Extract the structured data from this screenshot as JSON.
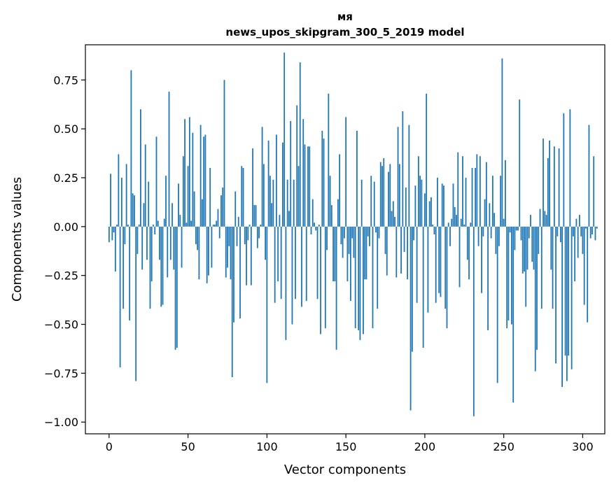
{
  "chart_data": {
    "type": "bar",
    "title_line1": "мя",
    "title_line2": "news_upos_skipgram_300_5_2019 model",
    "xlabel": "Vector components",
    "ylabel": "Components values",
    "xlim": [
      -15,
      314
    ],
    "ylim": [
      -1.06,
      0.93
    ],
    "xticks": [
      0,
      50,
      100,
      150,
      200,
      250,
      300
    ],
    "xtick_labels": [
      "0",
      "50",
      "100",
      "150",
      "200",
      "250",
      "300"
    ],
    "yticks": [
      0.75,
      0.5,
      0.25,
      0.0,
      -0.25,
      -0.5,
      -0.75,
      -1.0
    ],
    "ytick_labels": [
      "0.75",
      "0.50",
      "0.25",
      "0.00",
      "−0.25",
      "−0.50",
      "−0.75",
      "−1.00"
    ],
    "bar_color": "#1f77b4",
    "x_start": 0,
    "values": [
      -0.08,
      0.27,
      -0.07,
      -0.03,
      -0.23,
      0.01,
      0.37,
      -0.72,
      0.25,
      -0.42,
      -0.09,
      0.32,
      0.01,
      -0.48,
      0.8,
      0.17,
      0.16,
      -0.79,
      -0.14,
      0.01,
      0.6,
      -0.22,
      0.12,
      0.42,
      -0.17,
      0.23,
      -0.42,
      -0.28,
      0.01,
      -0.04,
      0.46,
      0.03,
      -0.17,
      -0.41,
      -0.4,
      0.04,
      0.26,
      -0.26,
      0.69,
      -0.17,
      0.12,
      -0.22,
      -0.63,
      -0.62,
      0.22,
      0.06,
      -0.21,
      0.36,
      0.55,
      0.02,
      0.31,
      0.56,
      0.03,
      0.48,
      0.18,
      -0.09,
      -0.12,
      -0.27,
      0.52,
      0.14,
      0.46,
      0.47,
      -0.29,
      -0.25,
      0.3,
      -0.21,
      0.01,
      0.01,
      0.03,
      0.09,
      -0.06,
      0.16,
      0.2,
      0.75,
      -0.26,
      -0.21,
      -0.1,
      -0.27,
      -0.77,
      -0.49,
      0.18,
      -0.1,
      0.05,
      -0.47,
      0.31,
      0.3,
      -0.09,
      -0.3,
      -0.07,
      0.01,
      -0.3,
      0.4,
      0.11,
      0.11,
      -0.11,
      -0.06,
      0.01,
      0.51,
      0.32,
      -0.17,
      -0.8,
      0.44,
      0.26,
      0.12,
      0.24,
      -0.39,
      0.47,
      -0.28,
      0.06,
      -0.37,
      0.43,
      0.89,
      -0.58,
      0.24,
      0.08,
      0.54,
      -0.5,
      0.24,
      -0.37,
      0.62,
      0.31,
      0.84,
      -0.41,
      0.55,
      0.42,
      -0.38,
      0.41,
      0.41,
      -0.04,
      0.14,
      0.02,
      -0.02,
      -0.37,
      0.01,
      -0.55,
      0.49,
      0.45,
      -0.52,
      -0.12,
      0.68,
      0.26,
      0.11,
      -0.28,
      -0.28,
      -0.63,
      0.14,
      0.37,
      -0.09,
      -0.16,
      -0.06,
      0.56,
      -0.28,
      -0.14,
      -0.38,
      -0.06,
      -0.16,
      -0.52,
      0.49,
      -0.53,
      -0.58,
      0.24,
      -0.55,
      -0.27,
      -0.27,
      -0.05,
      -0.1,
      0.26,
      -0.52,
      0.23,
      -0.03,
      -0.42,
      -0.06,
      0.33,
      0.31,
      0.35,
      -0.14,
      -0.25,
      0.28,
      0.32,
      0.08,
      0.13,
      0.05,
      -0.26,
      0.51,
      0.32,
      -0.24,
      0.59,
      -0.13,
      0.2,
      -0.27,
      0.52,
      -0.94,
      -0.64,
      -0.07,
      0.21,
      -0.39,
      0.36,
      0.26,
      0.24,
      -0.62,
      0.17,
      0.68,
      -0.44,
      0.13,
      0.15,
      0.01,
      -0.04,
      -0.39,
      0.25,
      -0.34,
      -0.36,
      0.22,
      0.21,
      -0.42,
      -0.52,
      0.02,
      -0.1,
      0.04,
      0.22,
      0.1,
      0.06,
      0.38,
      -0.31,
      0.04,
      0.36,
      0.01,
      0.25,
      -0.17,
      -0.27,
      0.02,
      0.3,
      -0.97,
      0.3,
      0.37,
      -0.1,
      0.36,
      -0.34,
      -0.05,
      0.14,
      0.33,
      -0.53,
      0.12,
      -0.06,
      0.26,
      0.07,
      -0.14,
      -0.8,
      -0.1,
      0.26,
      0.86,
      0.04,
      0.34,
      -0.52,
      -0.48,
      -0.03,
      -0.5,
      -0.9,
      -0.12,
      -0.02,
      -0.02,
      0.65,
      -0.07,
      -0.24,
      -0.23,
      -0.41,
      -0.22,
      -0.06,
      0.06,
      -0.18,
      -0.22,
      -0.74,
      -0.63,
      -0.14,
      0.09,
      -0.42,
      0.45,
      0.08,
      0.06,
      0.35,
      0.44,
      -0.22,
      -0.42,
      0.41,
      -0.7,
      -0.05,
      0.4,
      -0.08,
      -0.82,
      0.58,
      -0.66,
      -0.79,
      -0.66,
      0.6,
      -0.73,
      -0.05,
      -0.28,
      0.04,
      -0.16,
      0.06,
      -0.05,
      -0.14,
      -0.4,
      -0.01,
      -0.49,
      0.52,
      -0.06,
      -0.04,
      0.36,
      -0.07,
      -0.01
    ]
  }
}
